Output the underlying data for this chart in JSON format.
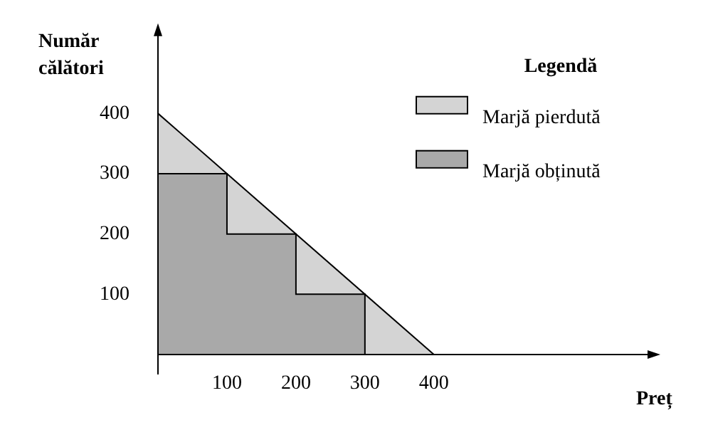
{
  "chart_data": {
    "type": "area",
    "xlabel": "Preț",
    "ylabel": "Număr călători",
    "legend_title": "Legendă",
    "legend": "top right",
    "grid": false,
    "marker": "none",
    "xlim": [
      0,
      720
    ],
    "xticks": [
      100,
      200,
      300,
      400
    ],
    "ylim": [
      0,
      540
    ],
    "yticks": [
      100,
      200,
      300,
      400
    ],
    "series": [
      {
        "name": "Marjă pierdută",
        "color": "#d4d4d4",
        "x": [
          0,
          400
        ],
        "values": [
          400,
          0
        ]
      },
      {
        "name": "Marjă obținută",
        "color": "#a9a9a9",
        "x": [
          0,
          100,
          100,
          200,
          200,
          300,
          300
        ],
        "values": [
          300,
          300,
          200,
          200,
          100,
          100,
          0
        ]
      }
    ]
  }
}
